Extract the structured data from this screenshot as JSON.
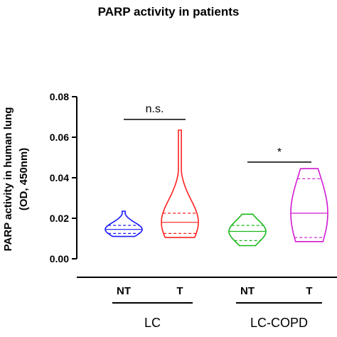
{
  "chart_data": {
    "type": "violin",
    "title": "PARP activity in patients",
    "ylabel_line1": "PARP activity in human lung",
    "ylabel_line2": "(OD, 450nm)",
    "ylim": [
      0,
      0.08
    ],
    "yticks": [
      "0.00",
      "0.02",
      "0.04",
      "0.06",
      "0.08"
    ],
    "yticks_values": [
      0,
      0.02,
      0.04,
      0.06,
      0.08
    ],
    "groups": [
      {
        "label": "LC",
        "categories": [
          "NT",
          "T"
        ]
      },
      {
        "label": "LC-COPD",
        "categories": [
          "NT",
          "T"
        ]
      }
    ],
    "series": [
      {
        "group": "LC",
        "category": "NT",
        "color": "#1a1aff",
        "min": 0.011,
        "max": 0.0235,
        "q1": 0.0125,
        "median": 0.0145,
        "q3": 0.0165
      },
      {
        "group": "LC",
        "category": "T",
        "color": "#ff2020",
        "min": 0.0105,
        "max": 0.0635,
        "q1": 0.0125,
        "median": 0.018,
        "q3": 0.0225
      },
      {
        "group": "LC-COPD",
        "category": "NT",
        "color": "#1ab81a",
        "min": 0.0065,
        "max": 0.022,
        "q1": 0.009,
        "median": 0.0135,
        "q3": 0.0165
      },
      {
        "group": "LC-COPD",
        "category": "T",
        "color": "#d21ad2",
        "min": 0.0085,
        "max": 0.0445,
        "q1": 0.0105,
        "median": 0.0225,
        "q3": 0.0395
      }
    ],
    "significance": [
      {
        "between": [
          "LC NT",
          "LC T"
        ],
        "label": "n.s."
      },
      {
        "between": [
          "LC-COPD NT",
          "LC-COPD T"
        ],
        "label": "*"
      }
    ]
  }
}
